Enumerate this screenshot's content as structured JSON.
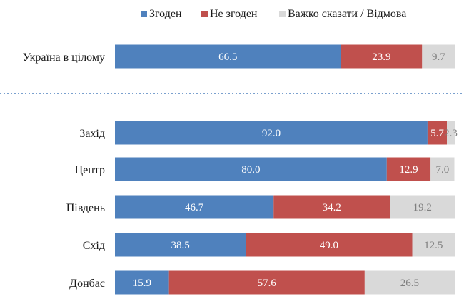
{
  "chart_data": {
    "type": "bar",
    "orientation": "horizontal",
    "stacked": true,
    "title": "",
    "xlabel": "",
    "ylabel": "",
    "xlim": [
      0,
      100
    ],
    "grid": false,
    "legend_position": "top",
    "categories": [
      "Україна в цілому",
      "Захід",
      "Центр",
      "Південь",
      "Схід",
      "Донбас"
    ],
    "series": [
      {
        "name": "Згоден",
        "color": "#4f81bd",
        "label_color": "#ffffff",
        "values": [
          66.5,
          92.0,
          80.0,
          46.7,
          38.5,
          15.9
        ]
      },
      {
        "name": "Не згоден",
        "color": "#c0504d",
        "label_color": "#ffffff",
        "values": [
          23.9,
          5.7,
          12.9,
          34.2,
          49.0,
          57.6
        ]
      },
      {
        "name": "Важко сказати / Відмова",
        "color": "#d9d9d9",
        "label_color": "#7f7f7f",
        "values": [
          9.7,
          2.3,
          7.0,
          19.2,
          12.5,
          26.5
        ]
      }
    ],
    "value_labels": [
      [
        "66.5",
        "92.0",
        "80.0",
        "46.7",
        "38.5",
        "15.9"
      ],
      [
        "23.9",
        "5.7",
        "12.9",
        "34.2",
        "49.0",
        "57.6"
      ],
      [
        "9.7",
        "2.3",
        "7.0",
        "19.2",
        "12.5",
        "26.5"
      ]
    ]
  }
}
